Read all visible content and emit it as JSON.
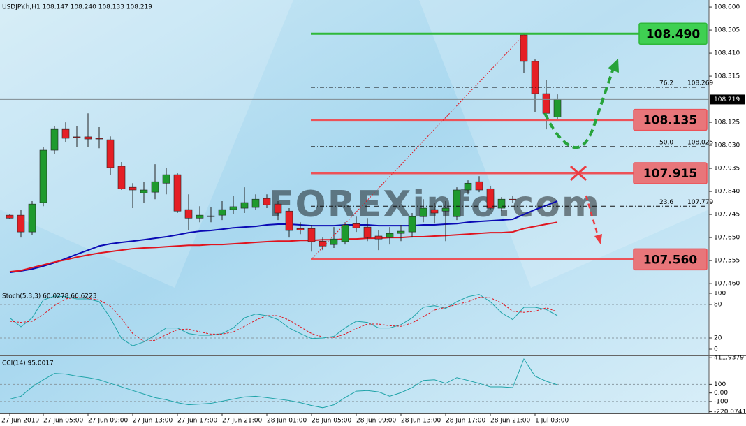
{
  "chart_data": [
    {
      "type": "candlestick",
      "title": "USDJPY.h,H1  108.147 108.240 108.133 108.219",
      "watermark": "FOREXinfo.com",
      "categories": [
        "27 Jun 2019",
        null,
        null,
        "27 Jun 05:00",
        null,
        null,
        null,
        "27 Jun 09:00",
        null,
        null,
        null,
        "27 Jun 13:00",
        null,
        null,
        null,
        "27 Jun 17:00",
        null,
        null,
        null,
        "27 Jun 21:00",
        null,
        null,
        null,
        "28 Jun 01:00",
        null,
        null,
        null,
        "28 Jun 05:00",
        null,
        null,
        null,
        "28 Jun 09:00",
        null,
        null,
        null,
        "28 Jun 13:00",
        null,
        null,
        null,
        "28 Jun 17:00",
        null,
        null,
        null,
        "28 Jun 21:00",
        null,
        null,
        null,
        "1 Jul 03:00",
        null,
        null
      ],
      "open": [
        107.742,
        107.742,
        107.673,
        107.794,
        108.01,
        108.096,
        108.065,
        108.065,
        108.059,
        108.053,
        107.944,
        107.857,
        107.834,
        107.837,
        107.874,
        107.909,
        107.765,
        107.73,
        107.739,
        107.742,
        107.765,
        107.771,
        107.774,
        107.811,
        107.788,
        107.759,
        107.687,
        107.687,
        107.635,
        107.621,
        107.633,
        107.707,
        107.693,
        107.656,
        107.65,
        107.667,
        107.673,
        107.736,
        107.765,
        107.759,
        107.736,
        107.846,
        107.88,
        107.851,
        107.771,
        107.808,
        108.485,
        108.376,
        108.243,
        108.147
      ],
      "high": [
        107.748,
        107.765,
        107.8,
        108.024,
        108.111,
        108.125,
        108.111,
        108.162,
        108.105,
        108.067,
        107.961,
        107.874,
        107.88,
        107.952,
        107.938,
        107.915,
        107.828,
        107.779,
        107.777,
        107.8,
        107.823,
        107.857,
        107.828,
        107.828,
        107.8,
        107.771,
        107.713,
        107.702,
        107.65,
        107.693,
        107.713,
        107.736,
        107.73,
        107.679,
        107.693,
        107.702,
        107.751,
        107.808,
        107.794,
        107.8,
        107.857,
        107.886,
        107.903,
        107.863,
        107.817,
        107.823,
        108.491,
        108.384,
        108.298,
        108.24
      ],
      "low": [
        107.725,
        107.65,
        107.661,
        107.779,
        107.995,
        108.044,
        108.024,
        108.024,
        108.018,
        107.909,
        107.846,
        107.771,
        107.794,
        107.808,
        107.828,
        107.751,
        107.679,
        107.713,
        107.713,
        107.722,
        107.748,
        107.751,
        107.765,
        107.771,
        107.722,
        107.65,
        107.664,
        107.592,
        107.598,
        107.607,
        107.621,
        107.673,
        107.635,
        107.598,
        107.621,
        107.635,
        107.65,
        107.713,
        107.707,
        107.635,
        107.722,
        107.828,
        107.837,
        107.765,
        107.759,
        107.794,
        108.327,
        108.168,
        108.096,
        108.133
      ],
      "close": [
        107.73,
        107.673,
        107.788,
        108.01,
        108.096,
        108.059,
        108.062,
        108.056,
        108.056,
        107.938,
        107.851,
        107.846,
        107.846,
        107.88,
        107.909,
        107.759,
        107.73,
        107.742,
        107.736,
        107.765,
        107.777,
        107.794,
        107.808,
        107.785,
        107.751,
        107.679,
        107.681,
        107.633,
        107.615,
        107.644,
        107.702,
        107.69,
        107.65,
        107.644,
        107.667,
        107.676,
        107.736,
        107.771,
        107.751,
        107.771,
        107.846,
        107.874,
        107.846,
        107.771,
        107.808,
        107.805,
        108.376,
        108.243,
        108.162,
        108.219
      ],
      "up_color": "#1f9a2e",
      "down_color": "#e51f25",
      "ylim": [
        107.443,
        108.629
      ],
      "yticks": [
        {
          "value": 108.6,
          "label": "108.600"
        },
        108.505,
        {
          "value": 108.41,
          "label": "108.410"
        },
        108.315,
        108.125,
        {
          "value": 108.03,
          "label": "108.030"
        },
        107.935,
        {
          "value": 107.84,
          "label": "107.840"
        },
        107.745,
        {
          "value": 107.65,
          "label": "107.650"
        },
        107.555,
        {
          "value": 107.46,
          "label": "107.460"
        }
      ],
      "moving_averages": [
        {
          "color": "#0a0ab4",
          "values": [
            107.506,
            107.512,
            107.52,
            107.532,
            107.546,
            107.563,
            107.581,
            107.598,
            107.615,
            107.624,
            107.63,
            107.635,
            107.641,
            107.647,
            107.653,
            107.661,
            107.67,
            107.676,
            107.679,
            107.684,
            107.69,
            107.693,
            107.696,
            107.702,
            107.705,
            107.705,
            107.702,
            107.699,
            107.699,
            107.699,
            107.702,
            107.702,
            107.702,
            107.699,
            107.699,
            107.699,
            107.699,
            107.702,
            107.702,
            107.705,
            107.707,
            107.713,
            107.716,
            107.719,
            107.722,
            107.725,
            107.745,
            107.765,
            107.782,
            107.8
          ]
        },
        {
          "color": "#e0141e",
          "values": [
            107.509,
            107.514,
            107.526,
            107.537,
            107.549,
            107.558,
            107.569,
            107.578,
            107.586,
            107.592,
            107.598,
            107.604,
            107.607,
            107.609,
            107.612,
            107.615,
            107.618,
            107.618,
            107.621,
            107.621,
            107.624,
            107.627,
            107.63,
            107.633,
            107.635,
            107.635,
            107.638,
            107.638,
            107.641,
            107.641,
            107.644,
            107.644,
            107.647,
            107.647,
            107.65,
            107.65,
            107.653,
            107.653,
            107.656,
            107.658,
            107.661,
            107.664,
            107.667,
            107.67,
            107.67,
            107.673,
            107.687,
            107.696,
            107.705,
            107.713
          ]
        }
      ],
      "levels": [
        {
          "value": 108.49,
          "label": "108.490",
          "color": "#2fb83a",
          "box_color": "#3fd052"
        },
        {
          "value": 108.135,
          "label": "108.135",
          "color": "#ec5258",
          "box_color": "#e8767a"
        },
        {
          "value": 107.915,
          "label": "107.915",
          "color": "#ec5258",
          "box_color": "#e8767a"
        },
        {
          "value": 107.56,
          "label": "107.560",
          "color": "#ec5258",
          "box_color": "#e8767a"
        }
      ],
      "fib_levels": [
        {
          "ratio": "76.2",
          "price": 108.269
        },
        {
          "ratio": "50.0",
          "price": 108.025
        },
        {
          "ratio": "23.6",
          "price": 107.779
        }
      ],
      "current_price": 108.219
    },
    {
      "type": "line",
      "title": "Stoch(5,3,3) 60.0278 66.6223",
      "ylim": [
        -10,
        107.5
      ],
      "yticks": [
        100,
        80,
        20,
        0
      ],
      "level_lines": [
        80,
        20
      ],
      "series": [
        {
          "color": "#1fa3a8",
          "style": "solid",
          "values": [
            56,
            40,
            56,
            88,
            95,
            94,
            90,
            90,
            85,
            56,
            19,
            6,
            13,
            25,
            38,
            38,
            28,
            25,
            25,
            28,
            38,
            56,
            63,
            60,
            53,
            38,
            28,
            19,
            20,
            23,
            38,
            50,
            48,
            38,
            38,
            44,
            56,
            75,
            78,
            73,
            85,
            94,
            98,
            85,
            65,
            53,
            75,
            75,
            71,
            60
          ]
        },
        {
          "color": "#e0141e",
          "style": "dashed",
          "values": [
            50,
            48,
            50,
            62,
            78,
            90,
            93,
            91,
            88,
            77,
            55,
            28,
            14,
            16,
            26,
            35,
            36,
            31,
            27,
            27,
            31,
            41,
            52,
            60,
            60,
            52,
            40,
            28,
            22,
            21,
            27,
            37,
            45,
            45,
            42,
            41,
            47,
            58,
            70,
            75,
            80,
            85,
            93,
            92,
            83,
            68,
            66,
            68,
            74,
            67
          ]
        }
      ]
    },
    {
      "type": "line",
      "title": "CCI(14) 95.0017",
      "ylim": [
        -240,
        430
      ],
      "yticks": [
        411.9379,
        100,
        {
          "value": 0,
          "label": "0.00"
        },
        -100,
        -220.0741
      ],
      "level_lines": [
        100,
        -100
      ],
      "series": [
        {
          "color": "#1fa3a8",
          "style": "solid",
          "values": [
            -72,
            -39,
            70,
            154,
            229,
            221,
            196,
            179,
            154,
            112,
            70,
            28,
            -13,
            -55,
            -80,
            -114,
            -139,
            -131,
            -122,
            -97,
            -72,
            -47,
            -39,
            -55,
            -72,
            -89,
            -114,
            -147,
            -173,
            -139,
            -55,
            20,
            28,
            12,
            -39,
            3,
            62,
            146,
            154,
            112,
            179,
            146,
            112,
            70,
            70,
            62,
            397,
            196,
            137,
            95
          ]
        }
      ]
    }
  ]
}
